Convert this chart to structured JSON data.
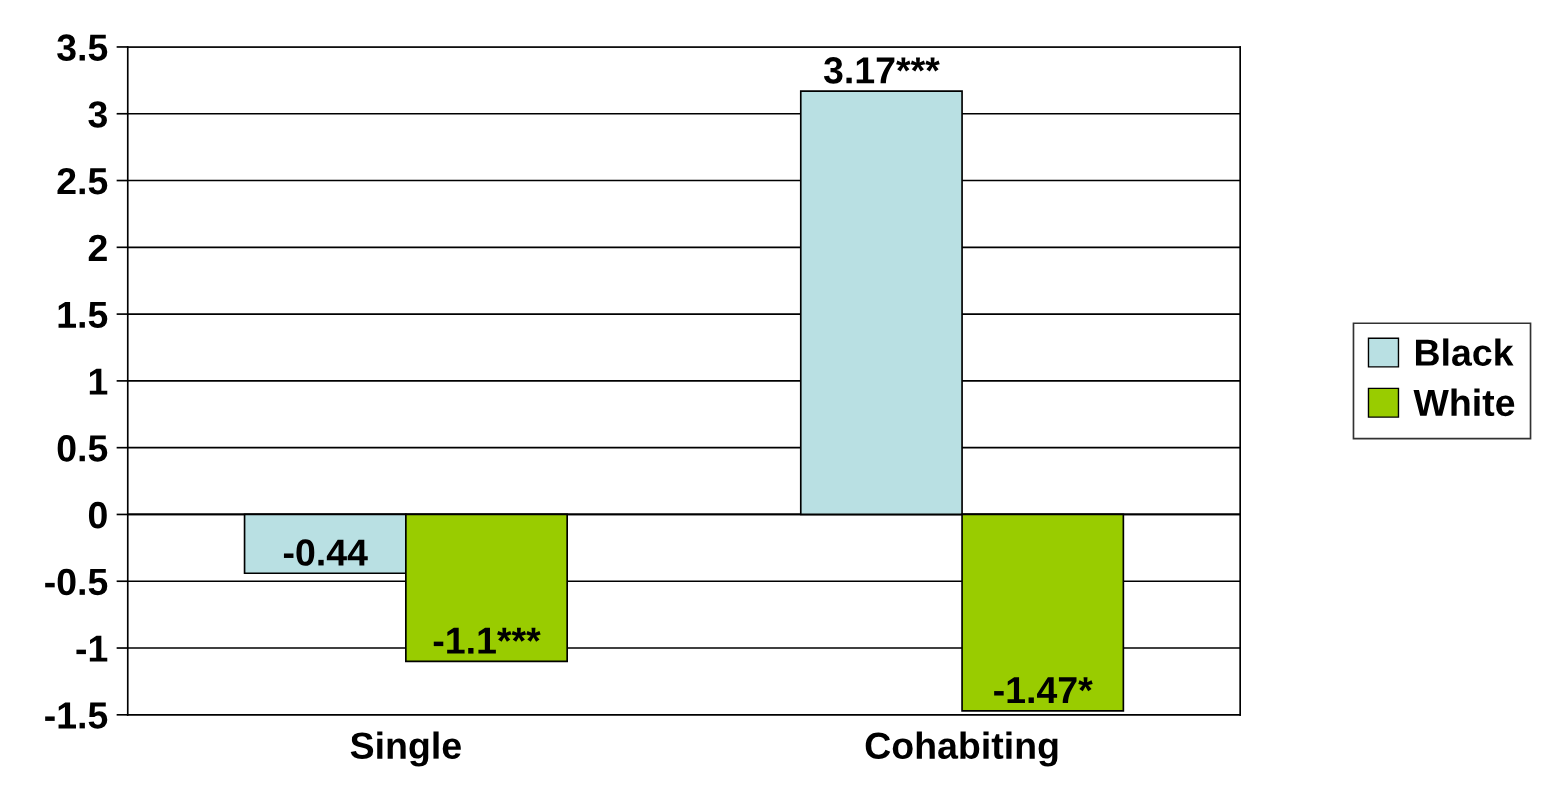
{
  "chart_data": {
    "type": "bar",
    "categories": [
      "Single",
      "Cohabiting"
    ],
    "series": [
      {
        "name": "Black",
        "color": "#b9e0e3",
        "values": [
          -0.44,
          3.17
        ],
        "value_labels": [
          "-0.44",
          "3.17***"
        ]
      },
      {
        "name": "White",
        "color": "#99cc00",
        "values": [
          -1.1,
          -1.47
        ],
        "value_labels": [
          "-1.1***",
          "-1.47*"
        ]
      }
    ],
    "ylim": [
      -1.5,
      3.5
    ],
    "yticks": [
      -1.5,
      -1,
      -0.5,
      0,
      0.5,
      1,
      1.5,
      2,
      2.5,
      3,
      3.5
    ],
    "grid": "y",
    "legend": "right"
  }
}
